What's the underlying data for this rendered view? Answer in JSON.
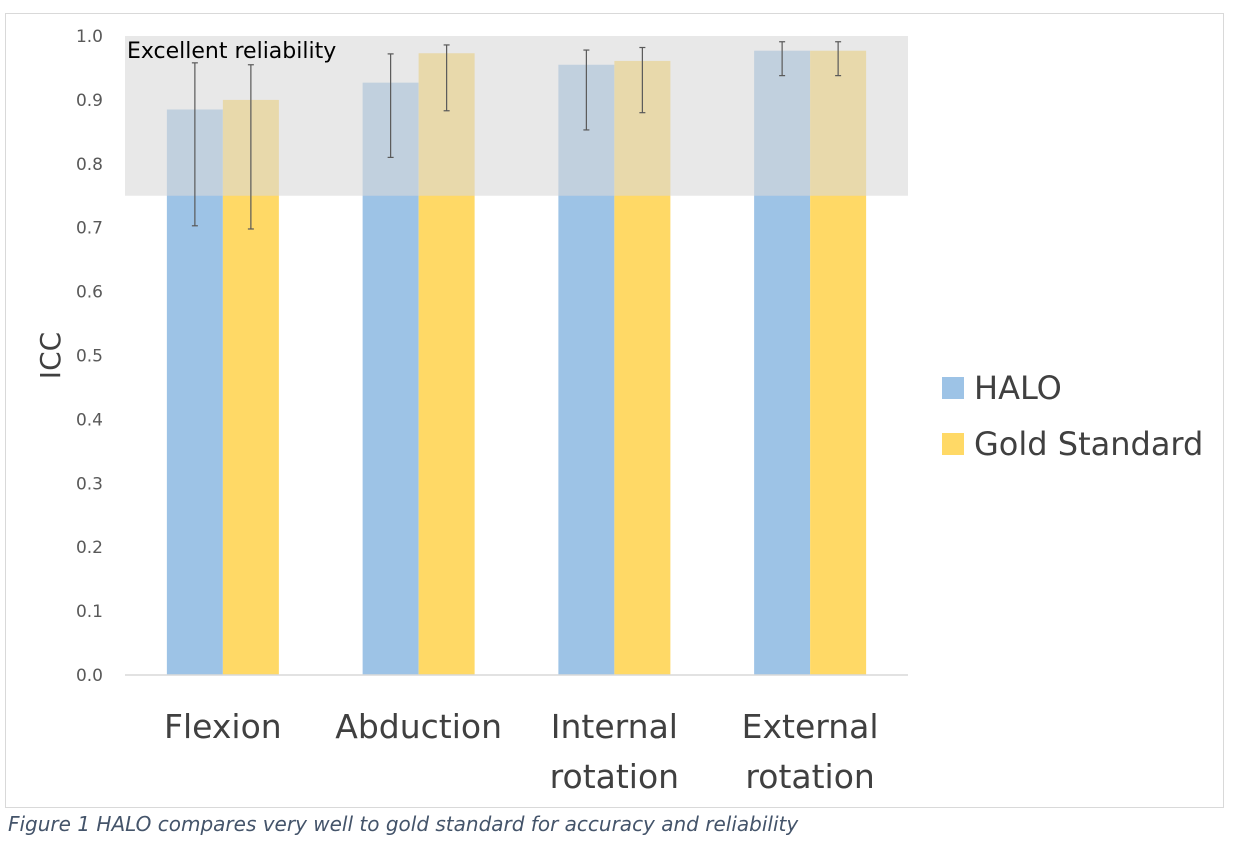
{
  "chart_data": {
    "type": "bar",
    "title": "",
    "xlabel": "",
    "ylabel": "ICC",
    "ylim": [
      0.0,
      1.0
    ],
    "yticks": [
      "0.0",
      "0.1",
      "0.2",
      "0.3",
      "0.4",
      "0.5",
      "0.6",
      "0.7",
      "0.8",
      "0.9",
      "1.0"
    ],
    "grid": false,
    "legend_position": "right",
    "categories": [
      [
        "Flexion"
      ],
      [
        "Abduction"
      ],
      [
        "Internal",
        "rotation"
      ],
      [
        "External",
        "rotation"
      ]
    ],
    "series": [
      {
        "name": "HALO",
        "color": "#9dc3e6",
        "values": [
          0.885,
          0.927,
          0.955,
          0.977
        ],
        "error_low": [
          0.703,
          0.81,
          0.853,
          0.938
        ],
        "error_high": [
          0.958,
          0.972,
          0.978,
          0.991
        ]
      },
      {
        "name": "Gold Standard",
        "color": "#ffd966",
        "values": [
          0.9,
          0.973,
          0.961,
          0.977
        ],
        "error_low": [
          0.698,
          0.883,
          0.88,
          0.938
        ],
        "error_high": [
          0.955,
          0.986,
          0.982,
          0.991
        ]
      }
    ],
    "annotation": {
      "label": "Excellent reliability",
      "y_from": 0.75,
      "y_to": 1.0,
      "color": "#d9d9d9"
    }
  },
  "caption": "Figure 1 HALO compares very well to gold standard for accuracy and reliability"
}
